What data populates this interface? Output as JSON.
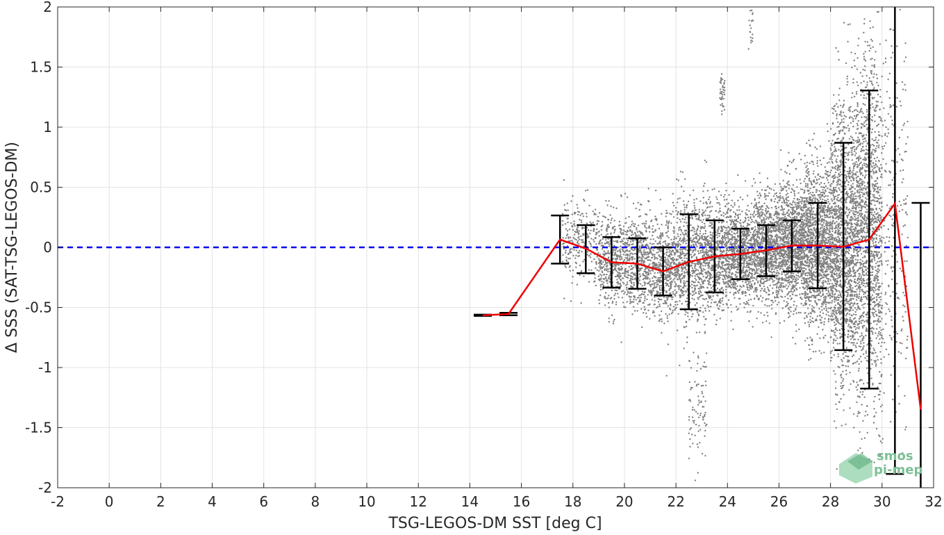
{
  "chart_data": {
    "type": "scatter",
    "xlabel": "TSG-LEGOS-DM SST [deg C]",
    "ylabel": "Δ SSS (SAT-TSG-LEGOS-DM)",
    "xlim": [
      -2,
      32
    ],
    "ylim": [
      -2,
      2
    ],
    "xticks": [
      -2,
      0,
      2,
      4,
      6,
      8,
      10,
      12,
      14,
      16,
      18,
      20,
      22,
      24,
      26,
      28,
      30,
      32
    ],
    "yticks": [
      -2,
      -1.5,
      -1,
      -0.5,
      0,
      0.5,
      1,
      1.5,
      2
    ],
    "xtick_labels": [
      "-2",
      "0",
      "2",
      "4",
      "6",
      "8",
      "10",
      "12",
      "14",
      "16",
      "18",
      "20",
      "22",
      "24",
      "26",
      "28",
      "30",
      "32"
    ],
    "ytick_labels": [
      "-2",
      "-1.5",
      "-1",
      "-0.5",
      "0",
      "0.5",
      "1",
      "1.5",
      "2"
    ],
    "grid": true,
    "reference_line": {
      "y": 0,
      "style": "dashed",
      "color": "#0000ee"
    },
    "scatter_color": "#808080",
    "mean_line_color": "#ee0000",
    "errorbar_color": "#000000",
    "series": [
      {
        "kind": "mean_with_std_errorbars",
        "x": [
          14.5,
          15.5,
          17.5,
          18.5,
          19.5,
          20.5,
          21.5,
          22.5,
          23.5,
          24.5,
          25.5,
          26.5,
          27.5,
          28.5,
          29.5,
          30.5,
          31.5
        ],
        "mean": [
          -0.565,
          -0.555,
          0.065,
          -0.01,
          -0.125,
          -0.135,
          -0.2,
          -0.12,
          -0.075,
          -0.055,
          -0.025,
          0.015,
          0.015,
          0.005,
          0.065,
          0.365,
          -1.35
        ],
        "lower": [
          -0.57,
          -0.565,
          -0.135,
          -0.215,
          -0.335,
          -0.345,
          -0.4,
          -0.515,
          -0.375,
          -0.265,
          -0.24,
          -0.2,
          -0.34,
          -0.855,
          -1.175,
          -1.885,
          -3.1
        ],
        "upper": [
          -0.56,
          -0.545,
          0.265,
          0.185,
          0.085,
          0.075,
          0.0,
          0.275,
          0.225,
          0.155,
          0.185,
          0.225,
          0.37,
          0.87,
          1.305,
          2.6,
          0.37
        ]
      }
    ],
    "scatter_clusters": [
      {
        "x_range": [
          17.6,
          19.0
        ],
        "y_mean": 0.05,
        "y_sd": 0.18,
        "count": 260
      },
      {
        "x_range": [
          19.0,
          20.0
        ],
        "y_mean": -0.12,
        "y_sd": 0.2,
        "count": 420
      },
      {
        "x_range": [
          20.0,
          21.0
        ],
        "y_mean": -0.13,
        "y_sd": 0.2,
        "count": 480
      },
      {
        "x_range": [
          21.0,
          22.0
        ],
        "y_mean": -0.18,
        "y_sd": 0.2,
        "count": 520
      },
      {
        "x_range": [
          22.0,
          23.0
        ],
        "y_mean": -0.1,
        "y_sd": 0.25,
        "count": 600
      },
      {
        "x_range": [
          23.0,
          24.0
        ],
        "y_mean": -0.07,
        "y_sd": 0.22,
        "count": 700
      },
      {
        "x_range": [
          24.0,
          25.0
        ],
        "y_mean": -0.05,
        "y_sd": 0.2,
        "count": 800
      },
      {
        "x_range": [
          25.0,
          26.0
        ],
        "y_mean": -0.02,
        "y_sd": 0.22,
        "count": 950
      },
      {
        "x_range": [
          26.0,
          27.0
        ],
        "y_mean": 0.01,
        "y_sd": 0.25,
        "count": 1100
      },
      {
        "x_range": [
          27.0,
          28.0
        ],
        "y_mean": 0.02,
        "y_sd": 0.33,
        "count": 1300
      },
      {
        "x_range": [
          28.0,
          29.0
        ],
        "y_mean": 0.02,
        "y_sd": 0.55,
        "count": 1600
      },
      {
        "x_range": [
          29.0,
          30.0
        ],
        "y_mean": 0.1,
        "y_sd": 0.75,
        "count": 1400
      },
      {
        "x_range": [
          30.0,
          31.0
        ],
        "y_mean": 0.3,
        "y_sd": 0.9,
        "count": 250
      },
      {
        "x_range": [
          22.5,
          23.2
        ],
        "y_mean": -1.3,
        "y_sd": 0.25,
        "count": 90
      },
      {
        "x_range": [
          23.7,
          23.9
        ],
        "y_mean": 1.3,
        "y_sd": 0.08,
        "count": 40
      },
      {
        "x_range": [
          24.8,
          25.0
        ],
        "y_mean": 1.85,
        "y_sd": 0.1,
        "count": 20
      }
    ]
  },
  "watermark": {
    "line1": "smos",
    "line2": "pi-mep",
    "color": "#7dbf96"
  }
}
